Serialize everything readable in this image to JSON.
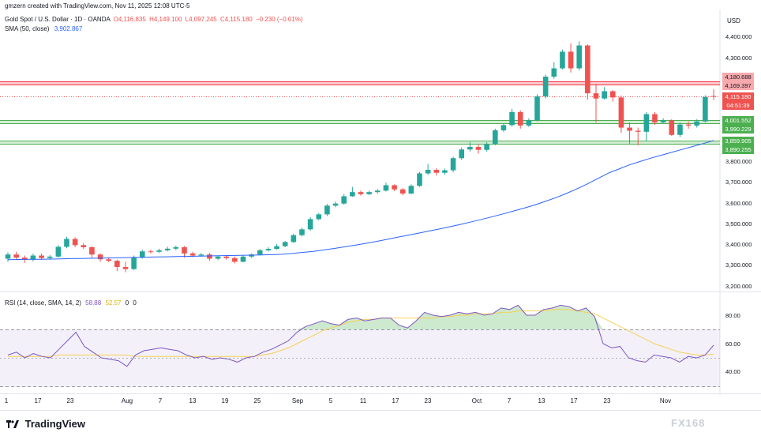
{
  "header": {
    "created_by": "gmzern created with TradingView.com, Nov 11, 2025 12:08 UTC-5",
    "symbol": "Gold Spot / U.S. Dollar · 1D · OANDA",
    "open": "O4,116.835",
    "high": "H4,149.100",
    "low": "L4,097.245",
    "close": "C4,115.180",
    "change": "−0.230 (−0.01%)",
    "sma_label": "SMA (50, close)",
    "sma_value": "3,902.867",
    "currency": "USD"
  },
  "rsi_header": {
    "label": "RSI (14, close, SMA, 14, 2)",
    "rsi_value": "58.88",
    "ma_value": "52.57",
    "extra1": "0",
    "extra2": "0"
  },
  "price_tags": {
    "resistance_top": "4,180.688",
    "resistance_bottom": "4,169.397",
    "last_price": "4,115.180",
    "countdown": "04:51:39",
    "support1_top": "4,001.552",
    "support1_bottom": "3,990.229",
    "support2_top": "3,859.905",
    "support2_bottom": "3,890.255"
  },
  "footer": {
    "brand": "TradingView",
    "watermark": "FX168"
  },
  "colors": {
    "up": "#26a69a",
    "down": "#ef5350",
    "sma": "#2962ff",
    "rsi": "#7e57c2",
    "rsi_ma": "#f7d154",
    "resistance": "#f23645",
    "support": "#4caf50"
  },
  "chart_data": [
    {
      "type": "candlestick",
      "title": "Gold Spot / U.S. Dollar · 1D · OANDA",
      "y_axis_ticks": [
        "4,400.000",
        "4,300.000",
        "3,800.000",
        "3,700.000",
        "3,600.000",
        "3,500.000",
        "3,400.000",
        "3,300.000",
        "3,200.000"
      ],
      "x_axis_ticks": [
        "1",
        "17",
        "23",
        "Aug",
        "7",
        "13",
        "19",
        "25",
        "Sep",
        "5",
        "11",
        "17",
        "23",
        "Oct",
        "7",
        "13",
        "17",
        "23",
        "Nov"
      ],
      "ylim": [
        3200,
        4450
      ],
      "candles": [
        {
          "o": 3335,
          "c": 3355,
          "h": 3365,
          "l": 3320
        },
        {
          "o": 3355,
          "c": 3340,
          "h": 3368,
          "l": 3330
        },
        {
          "o": 3340,
          "c": 3330,
          "h": 3350,
          "l": 3315
        },
        {
          "o": 3330,
          "c": 3350,
          "h": 3360,
          "l": 3322
        },
        {
          "o": 3350,
          "c": 3338,
          "h": 3360,
          "l": 3330
        },
        {
          "o": 3338,
          "c": 3345,
          "h": 3352,
          "l": 3330
        },
        {
          "o": 3345,
          "c": 3392,
          "h": 3400,
          "l": 3340
        },
        {
          "o": 3392,
          "c": 3430,
          "h": 3440,
          "l": 3385
        },
        {
          "o": 3430,
          "c": 3400,
          "h": 3438,
          "l": 3390
        },
        {
          "o": 3400,
          "c": 3390,
          "h": 3410,
          "l": 3382
        },
        {
          "o": 3390,
          "c": 3355,
          "h": 3395,
          "l": 3340
        },
        {
          "o": 3355,
          "c": 3332,
          "h": 3360,
          "l": 3320
        },
        {
          "o": 3332,
          "c": 3325,
          "h": 3342,
          "l": 3318
        },
        {
          "o": 3325,
          "c": 3295,
          "h": 3330,
          "l": 3275
        },
        {
          "o": 3295,
          "c": 3285,
          "h": 3320,
          "l": 3270
        },
        {
          "o": 3285,
          "c": 3340,
          "h": 3350,
          "l": 3280
        },
        {
          "o": 3340,
          "c": 3370,
          "h": 3378,
          "l": 3335
        },
        {
          "o": 3370,
          "c": 3368,
          "h": 3378,
          "l": 3360
        },
        {
          "o": 3368,
          "c": 3375,
          "h": 3383,
          "l": 3362
        },
        {
          "o": 3375,
          "c": 3383,
          "h": 3392,
          "l": 3370
        },
        {
          "o": 3383,
          "c": 3390,
          "h": 3398,
          "l": 3376
        },
        {
          "o": 3390,
          "c": 3360,
          "h": 3395,
          "l": 3340
        },
        {
          "o": 3360,
          "c": 3350,
          "h": 3368,
          "l": 3342
        },
        {
          "o": 3350,
          "c": 3355,
          "h": 3362,
          "l": 3345
        },
        {
          "o": 3355,
          "c": 3335,
          "h": 3362,
          "l": 3326
        },
        {
          "o": 3335,
          "c": 3345,
          "h": 3350,
          "l": 3328
        },
        {
          "o": 3345,
          "c": 3338,
          "h": 3352,
          "l": 3330
        },
        {
          "o": 3338,
          "c": 3320,
          "h": 3345,
          "l": 3312
        },
        {
          "o": 3320,
          "c": 3345,
          "h": 3352,
          "l": 3318
        },
        {
          "o": 3345,
          "c": 3355,
          "h": 3360,
          "l": 3338
        },
        {
          "o": 3355,
          "c": 3375,
          "h": 3382,
          "l": 3350
        },
        {
          "o": 3375,
          "c": 3382,
          "h": 3390,
          "l": 3370
        },
        {
          "o": 3382,
          "c": 3395,
          "h": 3405,
          "l": 3378
        },
        {
          "o": 3395,
          "c": 3415,
          "h": 3420,
          "l": 3390
        },
        {
          "o": 3415,
          "c": 3448,
          "h": 3455,
          "l": 3410
        },
        {
          "o": 3448,
          "c": 3476,
          "h": 3484,
          "l": 3442
        },
        {
          "o": 3476,
          "c": 3525,
          "h": 3534,
          "l": 3470
        },
        {
          "o": 3525,
          "c": 3548,
          "h": 3555,
          "l": 3520
        },
        {
          "o": 3548,
          "c": 3590,
          "h": 3598,
          "l": 3540
        },
        {
          "o": 3590,
          "c": 3600,
          "h": 3610,
          "l": 3582
        },
        {
          "o": 3600,
          "c": 3635,
          "h": 3645,
          "l": 3595
        },
        {
          "o": 3635,
          "c": 3655,
          "h": 3680,
          "l": 3632
        },
        {
          "o": 3655,
          "c": 3645,
          "h": 3662,
          "l": 3638
        },
        {
          "o": 3645,
          "c": 3655,
          "h": 3662,
          "l": 3640
        },
        {
          "o": 3655,
          "c": 3662,
          "h": 3670,
          "l": 3648
        },
        {
          "o": 3662,
          "c": 3688,
          "h": 3700,
          "l": 3658
        },
        {
          "o": 3688,
          "c": 3668,
          "h": 3692,
          "l": 3660
        },
        {
          "o": 3668,
          "c": 3648,
          "h": 3675,
          "l": 3640
        },
        {
          "o": 3648,
          "c": 3685,
          "h": 3692,
          "l": 3645
        },
        {
          "o": 3685,
          "c": 3745,
          "h": 3752,
          "l": 3680
        },
        {
          "o": 3745,
          "c": 3762,
          "h": 3790,
          "l": 3738
        },
        {
          "o": 3762,
          "c": 3748,
          "h": 3770,
          "l": 3735
        },
        {
          "o": 3748,
          "c": 3760,
          "h": 3768,
          "l": 3738
        },
        {
          "o": 3760,
          "c": 3818,
          "h": 3825,
          "l": 3750
        },
        {
          "o": 3818,
          "c": 3860,
          "h": 3870,
          "l": 3810
        },
        {
          "o": 3860,
          "c": 3872,
          "h": 3895,
          "l": 3850
        },
        {
          "o": 3872,
          "c": 3858,
          "h": 3885,
          "l": 3840
        },
        {
          "o": 3858,
          "c": 3885,
          "h": 3895,
          "l": 3850
        },
        {
          "o": 3885,
          "c": 3952,
          "h": 3960,
          "l": 3880
        },
        {
          "o": 3952,
          "c": 3977,
          "h": 3985,
          "l": 3945
        },
        {
          "o": 3977,
          "c": 4040,
          "h": 4055,
          "l": 3970
        },
        {
          "o": 4040,
          "c": 3975,
          "h": 4048,
          "l": 3960
        },
        {
          "o": 3975,
          "c": 4000,
          "h": 4010,
          "l": 3968
        },
        {
          "o": 4000,
          "c": 4115,
          "h": 4125,
          "l": 3995
        },
        {
          "o": 4115,
          "c": 4210,
          "h": 4220,
          "l": 4105
        },
        {
          "o": 4210,
          "c": 4250,
          "h": 4280,
          "l": 4200
        },
        {
          "o": 4250,
          "c": 4330,
          "h": 4340,
          "l": 4245
        },
        {
          "o": 4330,
          "c": 4250,
          "h": 4370,
          "l": 4230
        },
        {
          "o": 4250,
          "c": 4360,
          "h": 4380,
          "l": 4240
        },
        {
          "o": 4360,
          "c": 4130,
          "h": 4365,
          "l": 4100
        },
        {
          "o": 4130,
          "c": 4105,
          "h": 4175,
          "l": 3990
        },
        {
          "o": 4105,
          "c": 4140,
          "h": 4160,
          "l": 4100
        },
        {
          "o": 4140,
          "c": 4110,
          "h": 4145,
          "l": 4090
        },
        {
          "o": 4110,
          "c": 3965,
          "h": 4120,
          "l": 3940
        },
        {
          "o": 3965,
          "c": 3950,
          "h": 3990,
          "l": 3885
        },
        {
          "o": 3950,
          "c": 3945,
          "h": 3965,
          "l": 3880
        },
        {
          "o": 3945,
          "c": 4030,
          "h": 4040,
          "l": 3900
        },
        {
          "o": 4030,
          "c": 3990,
          "h": 4040,
          "l": 3978
        },
        {
          "o": 3990,
          "c": 4000,
          "h": 4010,
          "l": 3985
        },
        {
          "o": 4000,
          "c": 3930,
          "h": 4005,
          "l": 3925
        },
        {
          "o": 3930,
          "c": 3980,
          "h": 3990,
          "l": 3920
        },
        {
          "o": 3980,
          "c": 3975,
          "h": 3995,
          "l": 3960
        },
        {
          "o": 3975,
          "c": 3995,
          "h": 4005,
          "l": 3965
        },
        {
          "o": 3995,
          "c": 4112,
          "h": 4120,
          "l": 3990
        },
        {
          "o": 4116.835,
          "c": 4115.18,
          "h": 4149.1,
          "l": 4097.245
        }
      ],
      "sma_series": {
        "name": "SMA (50, close)",
        "values": [
          3330,
          3331,
          3332,
          3332,
          3333,
          3334,
          3335,
          3336,
          3337,
          3338,
          3339,
          3340,
          3341,
          3342,
          3343,
          3344,
          3345,
          3346,
          3347,
          3348,
          3349,
          3350,
          3351,
          3352,
          3353,
          3354,
          3356,
          3360,
          3365,
          3370,
          3377,
          3384,
          3392,
          3400,
          3409,
          3418,
          3428,
          3438,
          3448,
          3458,
          3468,
          3478,
          3489,
          3500,
          3512,
          3524,
          3537,
          3550,
          3564,
          3578,
          3593,
          3610,
          3628,
          3648,
          3670,
          3694,
          3720,
          3746,
          3766,
          3786,
          3802,
          3818,
          3832,
          3846,
          3860,
          3874,
          3888,
          3902.867
        ]
      }
    },
    {
      "type": "line",
      "title": "RSI (14, close, SMA, 14, 2)",
      "y_axis_ticks": [
        "80.00",
        "60.00",
        "40.00"
      ],
      "ylim": [
        30,
        90
      ],
      "overbought": 70,
      "oversold": 30,
      "middle": 50,
      "series": [
        {
          "name": "RSI",
          "values": [
            52,
            54,
            50,
            53,
            51,
            50,
            56,
            62,
            68,
            58,
            54,
            50,
            49,
            48,
            44,
            52,
            55,
            56,
            57,
            56,
            55,
            52,
            50,
            51,
            49,
            50,
            49,
            47,
            50,
            51,
            54,
            56,
            59,
            62,
            68,
            72,
            74,
            76,
            74,
            73,
            77,
            78,
            76,
            77,
            78,
            78,
            73,
            71,
            76,
            82,
            80,
            79,
            80,
            82,
            81,
            82,
            80,
            81,
            85,
            84,
            87,
            80,
            80,
            84,
            85,
            87,
            86,
            83,
            85,
            79,
            60,
            57,
            58,
            50,
            48,
            47,
            52,
            51,
            50,
            47,
            51,
            50,
            52,
            58.88
          ]
        },
        {
          "name": "MA",
          "values": [
            51,
            51,
            51,
            51,
            51,
            51,
            52,
            52,
            52,
            52,
            52,
            52,
            52,
            52,
            52,
            51,
            51,
            51,
            51,
            51,
            51,
            51,
            51,
            51,
            51,
            51,
            51,
            51,
            51,
            51,
            52,
            53,
            55,
            57,
            60,
            63,
            66,
            69,
            71,
            73,
            75,
            76,
            77,
            77,
            78,
            78,
            78,
            78,
            78,
            78,
            78,
            79,
            79,
            80,
            80,
            81,
            81,
            81,
            82,
            82,
            83,
            83,
            83,
            83,
            84,
            84,
            84,
            83,
            82,
            81,
            78,
            75,
            72,
            69,
            66,
            63,
            60,
            58,
            56,
            54,
            53,
            52,
            52,
            52.57
          ]
        }
      ]
    }
  ]
}
